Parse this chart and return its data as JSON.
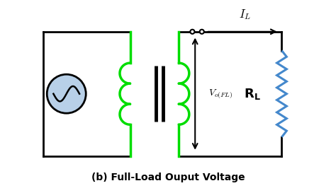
{
  "bg_color": "#ffffff",
  "line_color": "#000000",
  "green_color": "#00dd00",
  "blue_color": "#4488cc",
  "light_blue_fill": "#b8d0e8",
  "caption": "(b) Full-Load Ouput Voltage",
  "caption_fontsize": 10,
  "voltage_label": "$V_{o(FL)}$",
  "current_label": "$I_L$",
  "rl_label": "$\\mathbf{R_L}$",
  "n_bumps": 3,
  "bump_r": 0.38
}
